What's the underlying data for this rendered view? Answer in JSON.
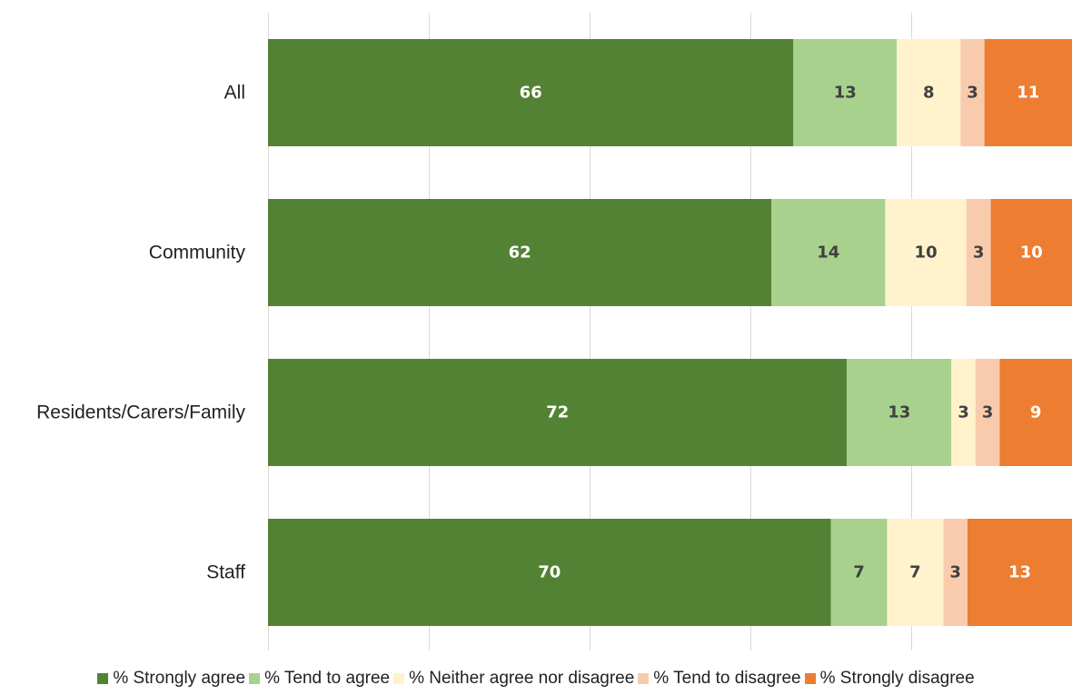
{
  "chart_data": {
    "type": "bar",
    "orientation": "horizontal",
    "stacked": true,
    "categories": [
      "All",
      "Community",
      "Residents/Carers/Family",
      "Staff"
    ],
    "series": [
      {
        "name": "% Strongly agree",
        "color": "#548235",
        "label_color": "#ffffff",
        "values": [
          66,
          62,
          72,
          70
        ]
      },
      {
        "name": "% Tend to agree",
        "color": "#a9d18e",
        "label_color": "#404040",
        "values": [
          13,
          14,
          13,
          7
        ]
      },
      {
        "name": "% Neither agree nor disagree",
        "color": "#fff2cc",
        "label_color": "#404040",
        "values": [
          8,
          10,
          3,
          7
        ]
      },
      {
        "name": "% Tend to disagree",
        "color": "#f8cbad",
        "label_color": "#404040",
        "values": [
          3,
          3,
          3,
          3
        ]
      },
      {
        "name": "% Strongly disagree",
        "color": "#ed7d31",
        "label_color": "#ffffff",
        "values": [
          11,
          10,
          9,
          13
        ]
      }
    ],
    "xlim": [
      0,
      100
    ],
    "grid": true,
    "legend_position": "bottom"
  }
}
